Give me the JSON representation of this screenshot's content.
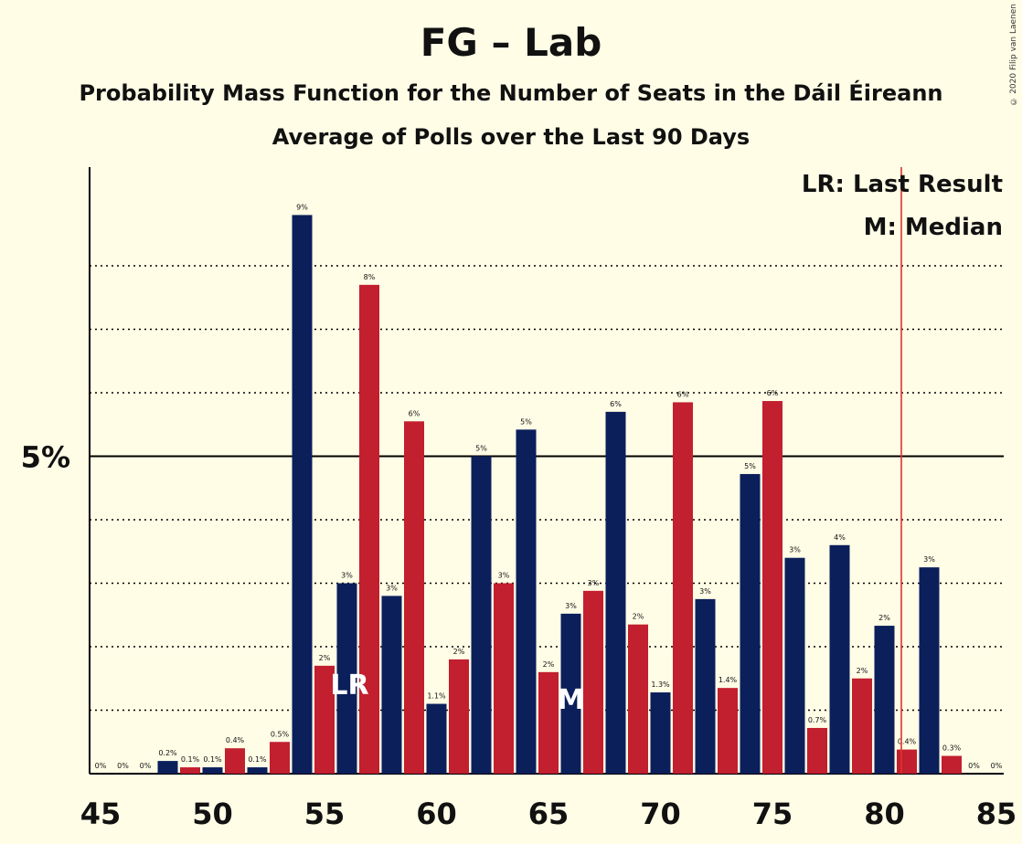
{
  "title": "FG – Lab",
  "subtitle1": "Probability Mass Function for the Number of Seats in the Dáil Éireann",
  "subtitle2": "Average of Polls over the Last 90 Days",
  "copyright": "© 2020 Filip van Laenen",
  "colors": {
    "fg": "#0B1F5B",
    "lab": "#C21F2F",
    "last_result_line": "#E0312E",
    "background": "#FFFDE6"
  },
  "chart_data": {
    "type": "bar",
    "x": [
      45,
      46,
      47,
      48,
      49,
      50,
      51,
      52,
      53,
      54,
      55,
      56,
      57,
      58,
      59,
      60,
      61,
      62,
      63,
      64,
      65,
      66,
      67,
      68,
      69,
      70,
      71,
      72,
      73,
      74,
      75,
      76,
      77,
      78,
      79,
      80,
      81,
      82,
      83,
      84,
      85
    ],
    "values": [
      0,
      0,
      0,
      0.2,
      0.1,
      0.1,
      0.4,
      0.1,
      0.5,
      8.8,
      1.7,
      3.0,
      7.7,
      2.8,
      5.55,
      1.1,
      1.8,
      5.0,
      3.0,
      5.42,
      1.6,
      2.52,
      2.88,
      5.7,
      2.35,
      1.28,
      5.85,
      2.75,
      1.35,
      4.72,
      5.87,
      3.4,
      0.72,
      3.6,
      1.5,
      2.33,
      0.38,
      3.25,
      0.28,
      0,
      0
    ],
    "labels": [
      "0%",
      "0%",
      "0%",
      "0.2%",
      "0.1%",
      "0.1%",
      "0.4%",
      "0.1%",
      "0.5%",
      "9%",
      "2%",
      "3%",
      "8%",
      "3%",
      "6%",
      "1.1%",
      "2%",
      "5%",
      "3%",
      "5%",
      "2%",
      "3%",
      "3%",
      "6%",
      "2%",
      "1.3%",
      "6%",
      "3%",
      "1.4%",
      "5%",
      "6%",
      "3%",
      "0.7%",
      "4%",
      "2%",
      "2%",
      "0.4%",
      "3%",
      "0.3%",
      "0%",
      "0%"
    ],
    "xticks": [
      "45",
      "50",
      "55",
      "60",
      "65",
      "70",
      "75",
      "80",
      "85"
    ],
    "ytick_label": "5%",
    "ylim": [
      0,
      9.6
    ],
    "last_result": 81,
    "last_result_marker": "LR",
    "median": 66,
    "median_marker": "M",
    "legend": {
      "lr": "LR: Last Result",
      "m": "M: Median",
      "placement": "top-right"
    },
    "grid": "dotted every 1%, solid at 5%"
  }
}
